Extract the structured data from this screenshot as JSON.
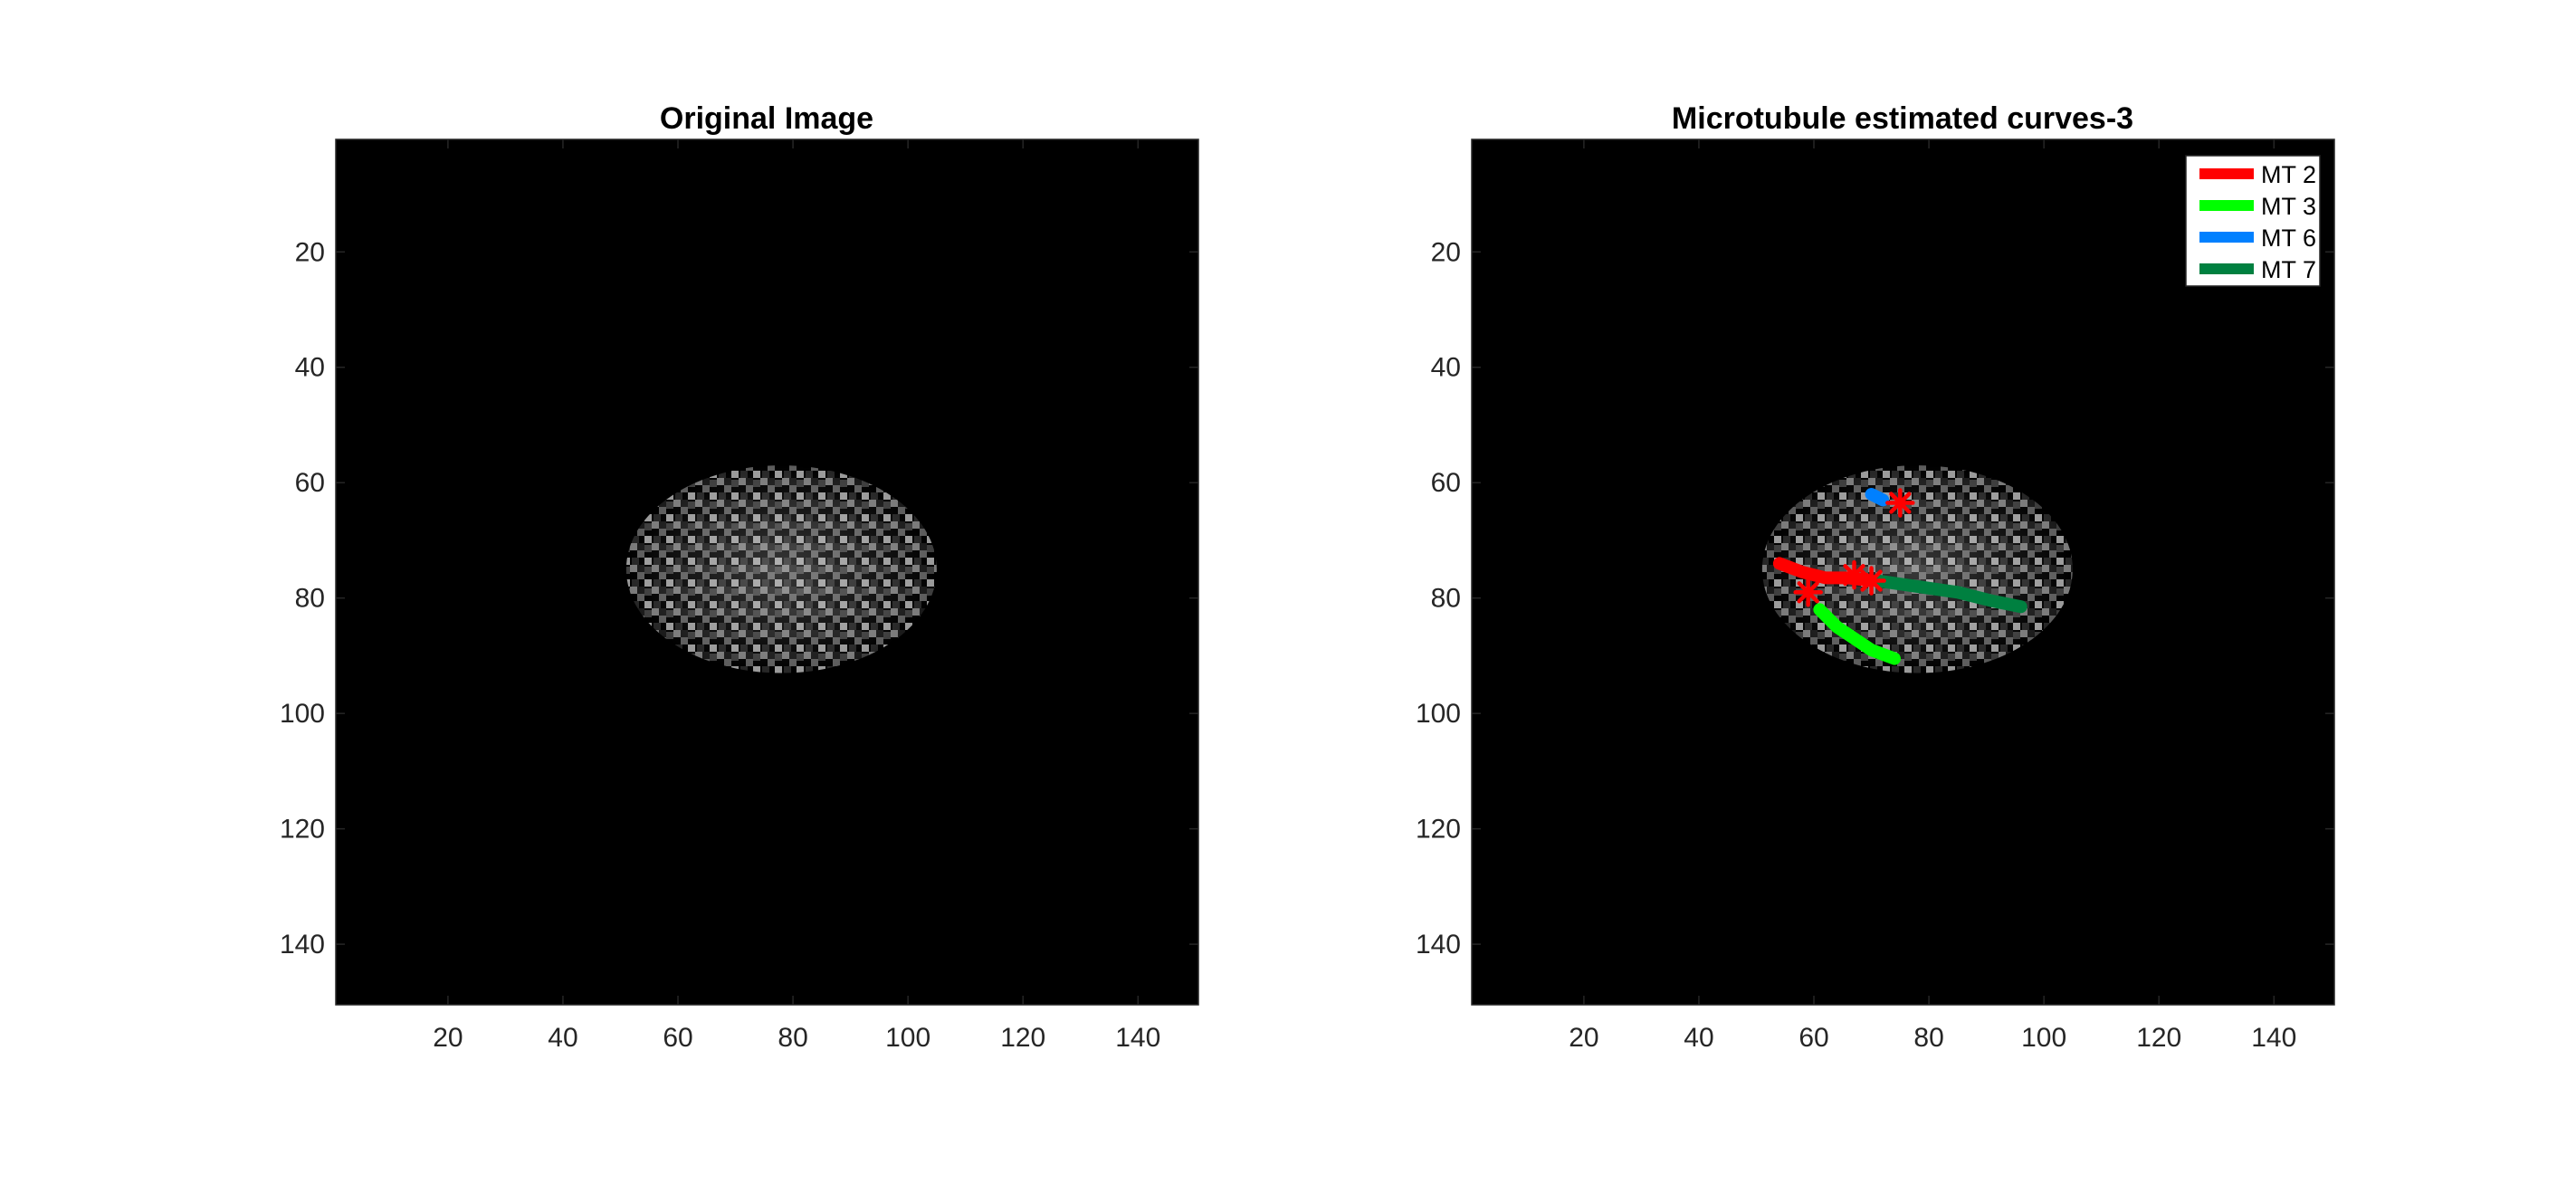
{
  "chart_data": [
    {
      "type": "image",
      "title": "Original Image",
      "xlabel": "",
      "ylabel": "",
      "xlim": [
        0.5,
        150.5
      ],
      "ylim": [
        150.5,
        0.5
      ],
      "y_direction": "reversed",
      "x_ticks": [
        20,
        40,
        60,
        80,
        100,
        120,
        140
      ],
      "y_ticks": [
        20,
        40,
        60,
        80,
        100,
        120,
        140
      ],
      "x_tick_labels": [
        "20",
        "40",
        "60",
        "80",
        "100",
        "120",
        "140"
      ],
      "y_tick_labels": [
        "20",
        "40",
        "60",
        "80",
        "100",
        "120",
        "140"
      ],
      "colormap": "gray",
      "background_color": "#000000",
      "speckle_region": {
        "center": [
          78,
          75
        ],
        "radius_x": 27,
        "radius_y": 18
      },
      "grid": false
    },
    {
      "type": "image",
      "title": "Microtubule estimated curves-3",
      "xlabel": "",
      "ylabel": "",
      "xlim": [
        0.5,
        150.5
      ],
      "ylim": [
        150.5,
        0.5
      ],
      "y_direction": "reversed",
      "x_ticks": [
        20,
        40,
        60,
        80,
        100,
        120,
        140
      ],
      "y_ticks": [
        20,
        40,
        60,
        80,
        100,
        120,
        140
      ],
      "x_tick_labels": [
        "20",
        "40",
        "60",
        "80",
        "100",
        "120",
        "140"
      ],
      "y_tick_labels": [
        "20",
        "40",
        "60",
        "80",
        "100",
        "120",
        "140"
      ],
      "colormap": "gray",
      "background_color": "#000000",
      "speckle_region": {
        "center": [
          78,
          75
        ],
        "radius_x": 27,
        "radius_y": 18
      },
      "grid": false,
      "legend_position": "top-right",
      "series": [
        {
          "name": "MT 2",
          "color": "#ff0000",
          "x": [
            54,
            58,
            62,
            66,
            70
          ],
          "y": [
            74,
            75.5,
            76.5,
            76.5,
            77
          ]
        },
        {
          "name": "MT 3",
          "color": "#00ff00",
          "x": [
            61,
            64,
            67,
            70,
            74
          ],
          "y": [
            82,
            85,
            87,
            89,
            90.5
          ]
        },
        {
          "name": "MT 6",
          "color": "#0080ff",
          "x": [
            70,
            72
          ],
          "y": [
            62,
            63
          ]
        },
        {
          "name": "MT 7",
          "color": "#008040",
          "x": [
            71,
            78,
            85,
            91,
            96
          ],
          "y": [
            77,
            78,
            79,
            80.5,
            81.5
          ]
        }
      ],
      "markers": {
        "color": "#ff0000",
        "symbol": "asterisk",
        "points": [
          {
            "x": 75,
            "y": 63.5
          },
          {
            "x": 67,
            "y": 76
          },
          {
            "x": 70,
            "y": 77
          },
          {
            "x": 59,
            "y": 79
          }
        ]
      }
    }
  ]
}
